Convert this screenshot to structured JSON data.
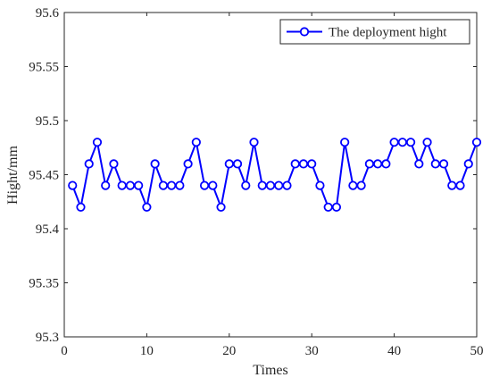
{
  "chart_data": {
    "type": "line",
    "title": "",
    "xlabel": "Times",
    "ylabel": "Hight/mm",
    "xlim": [
      0,
      50
    ],
    "ylim": [
      95.3,
      95.6
    ],
    "x_ticks": [
      0,
      10,
      20,
      30,
      40,
      50
    ],
    "y_ticks": [
      95.3,
      95.35,
      95.4,
      95.45,
      95.5,
      95.55,
      95.6
    ],
    "x_tick_labels": [
      "0",
      "10",
      "20",
      "30",
      "40",
      "50"
    ],
    "y_tick_labels": [
      "95.3",
      "95.35",
      "95.4",
      "95.45",
      "95.5",
      "95.55",
      "95.6"
    ],
    "grid": false,
    "legend_position": "top-right",
    "series": [
      {
        "name": "The deployment hight",
        "color": "#0000ff",
        "marker": "circle",
        "x": [
          1,
          2,
          3,
          4,
          5,
          6,
          7,
          8,
          9,
          10,
          11,
          12,
          13,
          14,
          15,
          16,
          17,
          18,
          19,
          20,
          21,
          22,
          23,
          24,
          25,
          26,
          27,
          28,
          29,
          30,
          31,
          32,
          33,
          34,
          35,
          36,
          37,
          38,
          39,
          40,
          41,
          42,
          43,
          44,
          45,
          46,
          47,
          48,
          49,
          50
        ],
        "values": [
          95.44,
          95.42,
          95.46,
          95.48,
          95.44,
          95.46,
          95.44,
          95.44,
          95.44,
          95.42,
          95.46,
          95.44,
          95.44,
          95.44,
          95.46,
          95.48,
          95.44,
          95.44,
          95.42,
          95.46,
          95.46,
          95.44,
          95.48,
          95.44,
          95.44,
          95.44,
          95.44,
          95.46,
          95.46,
          95.46,
          95.44,
          95.42,
          95.42,
          95.48,
          95.44,
          95.44,
          95.46,
          95.46,
          95.46,
          95.48,
          95.48,
          95.48,
          95.46,
          95.48,
          95.46,
          95.46,
          95.44,
          95.44,
          95.46,
          95.48
        ]
      }
    ]
  }
}
